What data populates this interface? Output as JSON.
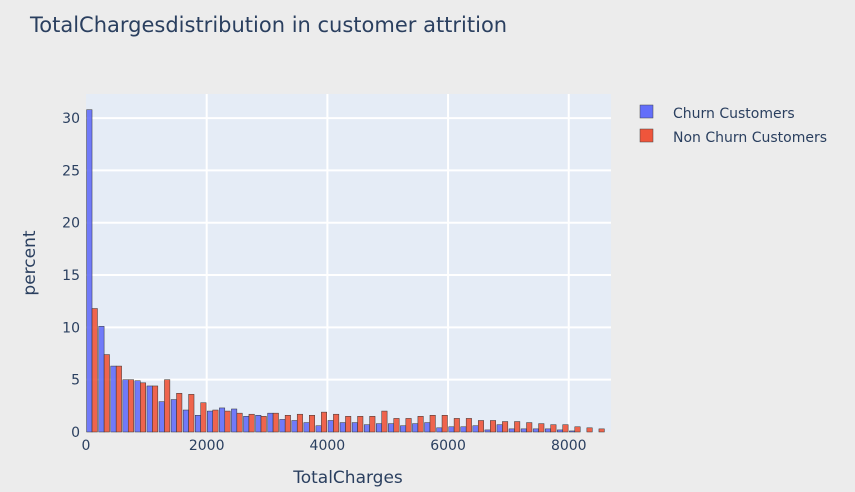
{
  "chart_data": {
    "type": "bar",
    "title": "TotalChargesdistribution in customer attrition",
    "xlabel": "TotalCharges",
    "ylabel": "percent",
    "xlim": [
      0,
      8700
    ],
    "ylim": [
      0,
      32.3
    ],
    "bin_width": 200,
    "x_ticks": [
      0,
      2000,
      4000,
      6000,
      8000
    ],
    "x_tick_labels": [
      "0",
      "2000",
      "4000",
      "6000",
      "8000"
    ],
    "y_ticks": [
      0,
      5,
      10,
      15,
      20,
      25,
      30
    ],
    "y_tick_labels": [
      "0",
      "5",
      "10",
      "15",
      "20",
      "25",
      "30"
    ],
    "grid": true,
    "legend_position": "top-right",
    "series": [
      {
        "name": "Churn Customers",
        "color": "#636efa",
        "values": [
          30.8,
          10.1,
          6.3,
          5.0,
          4.9,
          4.4,
          2.9,
          3.1,
          2.1,
          1.6,
          2.0,
          2.3,
          2.2,
          1.5,
          1.6,
          1.8,
          1.2,
          1.1,
          0.9,
          0.6,
          1.1,
          0.9,
          0.9,
          0.7,
          0.8,
          0.8,
          0.6,
          0.8,
          0.9,
          0.4,
          0.5,
          0.5,
          0.6,
          0.2,
          0.7,
          0.3,
          0.3,
          0.3,
          0.3,
          0.2,
          0.1,
          0.0,
          0.0
        ]
      },
      {
        "name": "Non Churn Customers",
        "color": "#ef553b",
        "values": [
          11.8,
          7.4,
          6.3,
          5.0,
          4.7,
          4.4,
          5.0,
          3.7,
          3.6,
          2.8,
          2.1,
          2.0,
          1.8,
          1.7,
          1.5,
          1.8,
          1.6,
          1.7,
          1.6,
          1.9,
          1.7,
          1.5,
          1.5,
          1.5,
          2.0,
          1.3,
          1.3,
          1.5,
          1.6,
          1.6,
          1.3,
          1.3,
          1.1,
          1.1,
          1.0,
          1.0,
          0.9,
          0.8,
          0.7,
          0.7,
          0.5,
          0.4,
          0.3
        ]
      }
    ]
  }
}
